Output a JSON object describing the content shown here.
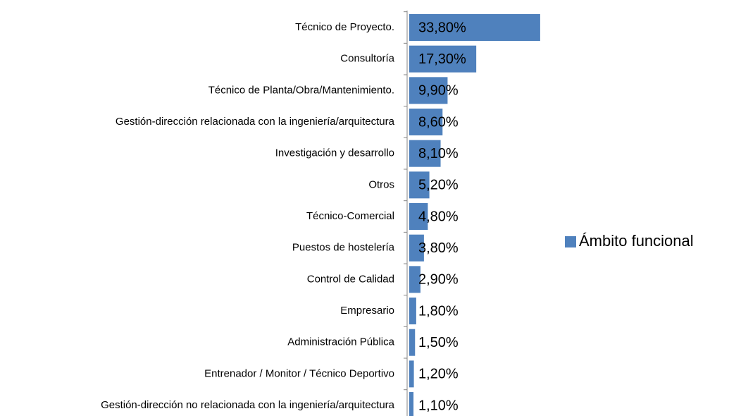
{
  "chart_data": {
    "type": "bar",
    "orientation": "horizontal",
    "categories": [
      "Técnico de Proyecto.",
      "Consultoría",
      "Técnico de Planta/Obra/Mantenimiento.",
      "Gestión-dirección relacionada con la ingeniería/arquitectura",
      "Investigación y desarrollo",
      "Otros",
      "Técnico-Comercial",
      "Puestos de hostelería",
      "Control de Calidad",
      "Empresario",
      "Administración Pública",
      "Entrenador / Monitor / Técnico Deportivo",
      "Gestión-dirección no relacionada con la ingeniería/arquitectura"
    ],
    "series": [
      {
        "name": "Ámbito funcional",
        "color": "#4f81bd",
        "values": [
          33.8,
          17.3,
          9.9,
          8.6,
          8.1,
          5.2,
          4.8,
          3.8,
          2.9,
          1.8,
          1.5,
          1.2,
          1.1
        ],
        "value_labels": [
          "33,80%",
          "17,30%",
          "9,90%",
          "8,60%",
          "8,10%",
          "5,20%",
          "4,80%",
          "3,80%",
          "2,90%",
          "1,80%",
          "1,50%",
          "1,20%",
          "1,10%"
        ]
      }
    ],
    "xlim": [
      0,
      40
    ],
    "legend": "right"
  }
}
